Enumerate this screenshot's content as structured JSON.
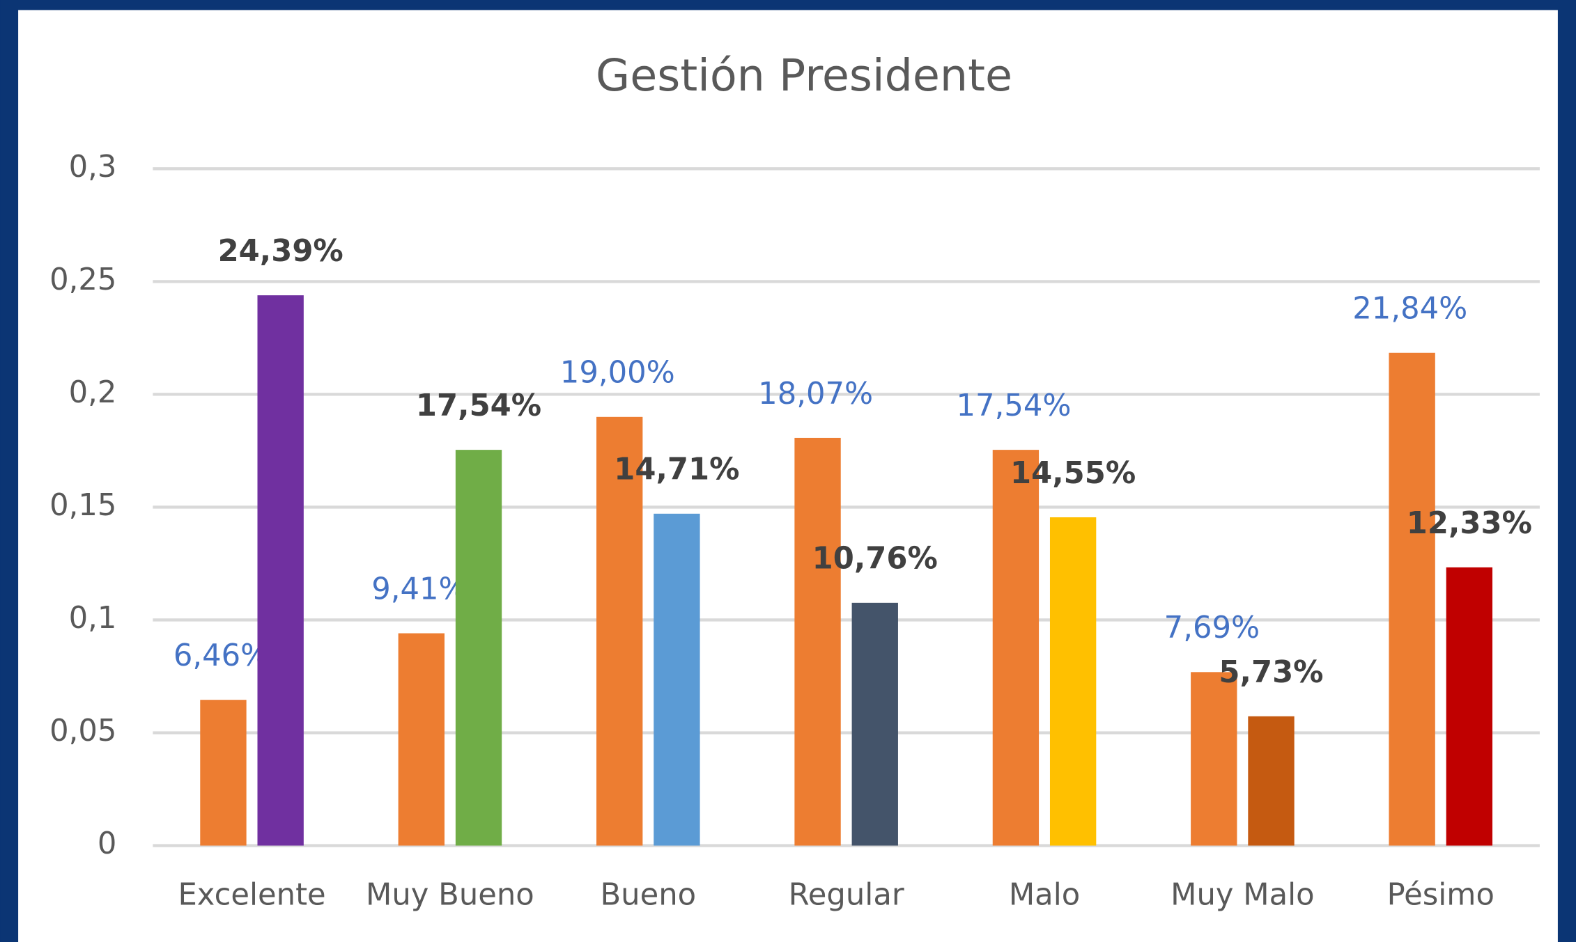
{
  "chart_data": {
    "type": "bar",
    "title": "Gestión Presidente",
    "categories": [
      "Excelente",
      "Muy Bueno",
      "Bueno",
      "Regular",
      "Malo",
      "Muy Malo",
      "Pésimo"
    ],
    "series": [
      {
        "color": "#ed7d31",
        "values": [
          0.0646,
          0.0941,
          0.19,
          0.1807,
          0.1754,
          0.0769,
          0.2184
        ],
        "value_labels": [
          "6,46%",
          "9,41%",
          "19,00%",
          "18,07%",
          "17,54%",
          "7,69%",
          "21,84%"
        ]
      },
      {
        "colors": [
          "#7030a0",
          "#70ad47",
          "#5b9bd5",
          "#44546a",
          "#ffc000",
          "#c55a11",
          "#c00000"
        ],
        "values": [
          0.2439,
          0.1754,
          0.1471,
          0.1076,
          0.1455,
          0.0573,
          0.1233
        ],
        "value_labels": [
          "24,39%",
          "17,54%",
          "14,71%",
          "10,76%",
          "14,55%",
          "5,73%",
          "12,33%"
        ]
      }
    ],
    "ylim": [
      0,
      0.3
    ],
    "yticks": [
      0,
      {
        "value": 0.05,
        "label": "0,05"
      },
      {
        "value": 0.1,
        "label": "0,1"
      },
      {
        "value": 0.15,
        "label": "0,15"
      },
      {
        "value": 0.2,
        "label": "0,2"
      },
      {
        "value": 0.25,
        "label": "0,25"
      },
      {
        "value": 0.3,
        "label": "0,3"
      }
    ],
    "grid": true
  }
}
